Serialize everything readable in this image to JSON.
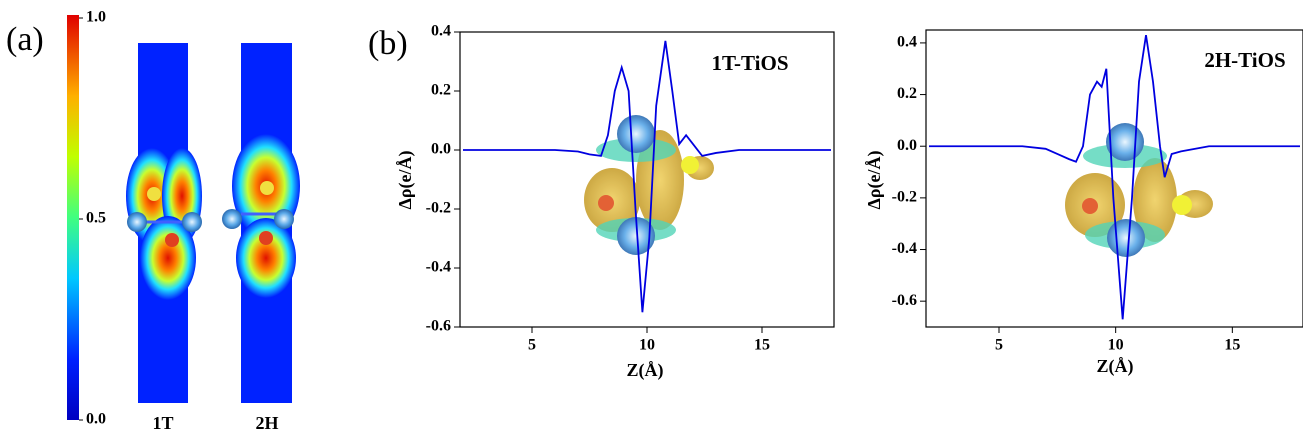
{
  "chart_data": [
    {
      "type": "colormap",
      "panel_label": "(a)",
      "categories": [
        "1T",
        "2H"
      ],
      "lim": [
        0,
        1
      ],
      "ticks": [
        {
          "value": 0,
          "label": "0.0"
        },
        0.5,
        {
          "value": 1,
          "label": "1.0"
        }
      ]
    },
    {
      "type": "line",
      "panel_label": "(b)",
      "title": "1T-TiOS",
      "x_label": "Z(Å)",
      "y_label": "Δρ(e/Å)",
      "xlim": [
        2,
        18
      ],
      "xticks": [
        5,
        10,
        15
      ],
      "ylim": [
        -0.6,
        0.4
      ],
      "yticks": [
        -0.6,
        -0.4,
        -0.2,
        {
          "value": 0,
          "label": "0.0"
        },
        0.2,
        0.4
      ],
      "series": [
        {
          "color": "#0000e0",
          "x": [
            2,
            6,
            7,
            7.5,
            8,
            8.3,
            8.6,
            8.9,
            9.2,
            9.5,
            9.8,
            10.1,
            10.4,
            10.8,
            11.1,
            11.4,
            11.7,
            12,
            12.4,
            13,
            14,
            18
          ],
          "values": [
            0,
            0,
            -0.005,
            -0.015,
            -0.02,
            0.05,
            0.2,
            0.28,
            0.2,
            -0.2,
            -0.55,
            -0.3,
            0.15,
            0.37,
            0.2,
            0.02,
            0.05,
            0.02,
            -0.02,
            -0.01,
            0,
            0
          ]
        }
      ]
    },
    {
      "type": "line",
      "title": "2H-TiOS",
      "x_label": "Z(Å)",
      "y_label": "Δρ(e/Å)",
      "xlim": [
        2,
        17.9
      ],
      "xticks": [
        5,
        10,
        15
      ],
      "ylim": [
        -0.7,
        0.45
      ],
      "yticks": [
        -0.6,
        -0.4,
        -0.2,
        {
          "value": 0,
          "label": "0.0"
        },
        0.2,
        0.4
      ],
      "series": [
        {
          "color": "#0000e0",
          "x": [
            2,
            6,
            7,
            7.5,
            8,
            8.3,
            8.6,
            8.9,
            9.2,
            9.4,
            9.6,
            9.9,
            10.3,
            10.7,
            11,
            11.3,
            11.6,
            11.9,
            12.1,
            12.4,
            12.8,
            14,
            17.9
          ],
          "values": [
            0,
            0,
            -0.01,
            -0.03,
            -0.05,
            -0.06,
            0,
            0.2,
            0.25,
            0.23,
            0.3,
            -0.2,
            -0.67,
            -0.2,
            0.25,
            0.43,
            0.25,
            0,
            -0.12,
            -0.03,
            -0.02,
            0,
            0
          ]
        }
      ]
    }
  ]
}
